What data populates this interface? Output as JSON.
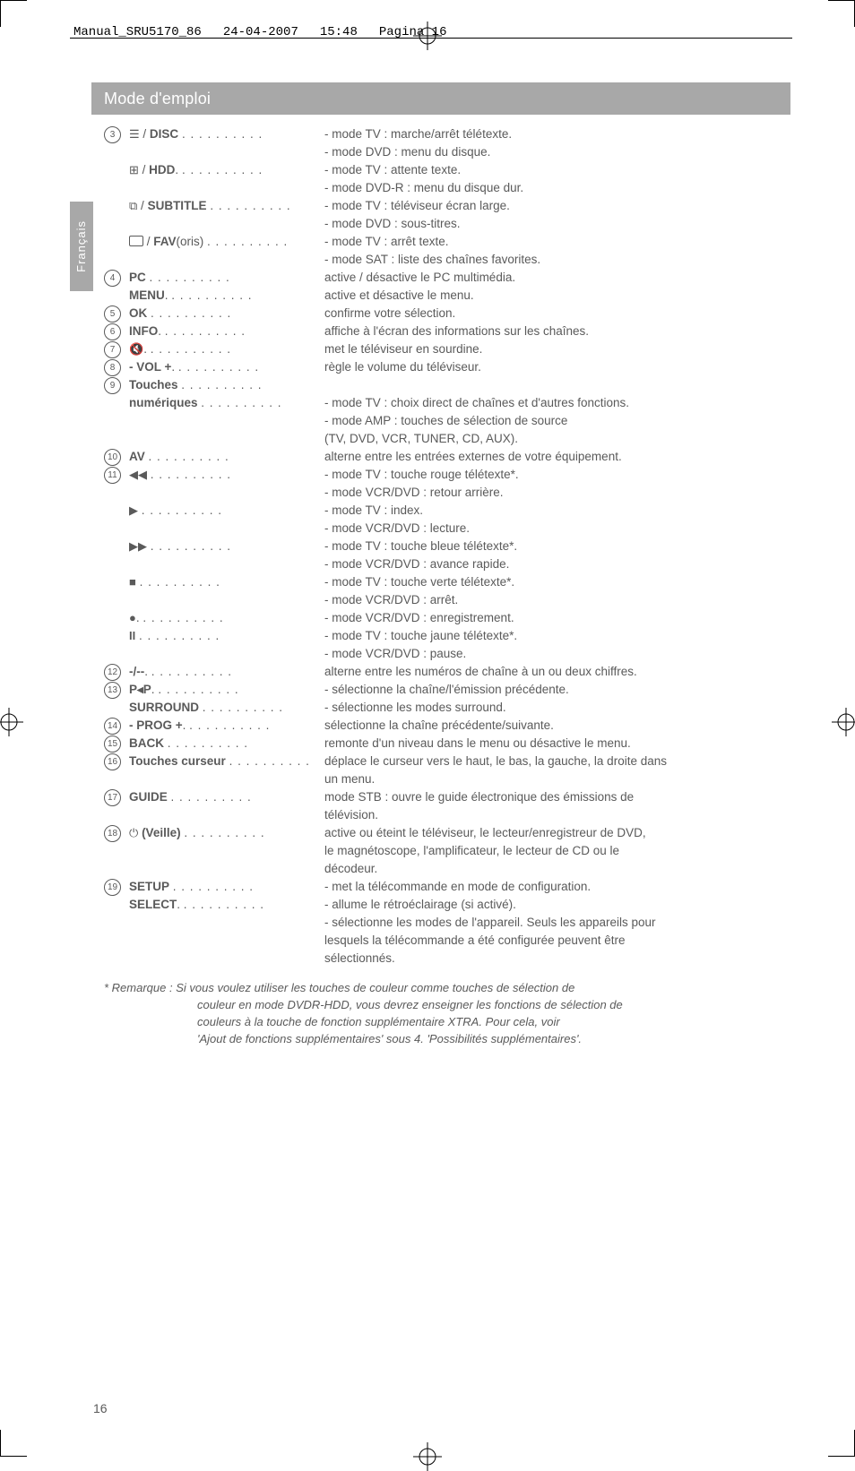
{
  "header": {
    "file": "Manual_SRU5170_86",
    "date": "24-04-2007",
    "time": "15:48",
    "pageinfo": "Pagina 16"
  },
  "section_title": "Mode d'emploi",
  "lang_tab": "Français",
  "dots12": ". . . . . . . . . . .",
  "dots11": ". . . . . . . . . .",
  "dots10": ". . . . . . . . .",
  "dots9": ". . . . . . . .",
  "dots8": ". . . . . . .",
  "dots7": ". . . . . .",
  "dots6": ". . . . .",
  "dots5": ". . . .",
  "dots_long": ". . . . . . . . . . . . . . . . .",
  "dots_longer": ". . . . . . . . . . . . . . . . . . .",
  "items": [
    {
      "n": "3",
      "label_html": "<span class='icon'>☰</span> / <b>DISC</b>",
      "desc": "- mode TV : marche/arrêt télétexte."
    },
    {
      "desc": "- mode DVD : menu du disque."
    },
    {
      "label_html": "<span class='icon'>⊞</span> / <b>HDD</b>.",
      "desc": "- mode TV : attente texte."
    },
    {
      "desc": "- mode DVD-R : menu du disque dur."
    },
    {
      "label_html": "<span class='icon'>⧉</span> / <b>SUBTITLE</b>",
      "desc": "- mode TV : téléviseur écran large."
    },
    {
      "desc": "- mode DVD : sous-titres."
    },
    {
      "label_html": "<span class='icon-box'></span> / <b>FAV</b>(oris)",
      "desc": "- mode TV : arrêt texte."
    },
    {
      "desc": "- mode SAT : liste des chaînes favorites."
    },
    {
      "n": "4",
      "label_html": "<b>PC</b>",
      "desc": "active / désactive le PC multimédia."
    },
    {
      "label_html": "<b>MENU</b>.",
      "desc": "active et désactive le menu."
    },
    {
      "n": "5",
      "label_html": "<b>OK</b>",
      "desc": "confirme votre sélection."
    },
    {
      "n": "6",
      "label_html": "<b>INFO</b>.",
      "desc": "affiche à l'écran des informations sur les chaînes."
    },
    {
      "n": "7",
      "label_html": "<span class='icon'>🔇</span>.",
      "desc": "met le téléviseur en sourdine."
    },
    {
      "n": "8",
      "label_html": "<b>- VOL +</b>.",
      "desc": "règle le volume du téléviseur."
    },
    {
      "n": "9",
      "label_html": "<b>Touches</b>",
      "desc": ""
    },
    {
      "label_html": "<b>numériques</b>",
      "desc": "- mode TV : choix direct de chaînes et d'autres fonctions."
    },
    {
      "desc": "- mode AMP : touches de sélection de source"
    },
    {
      "desc": "  (TV, DVD, VCR, TUNER, CD, AUX)."
    },
    {
      "n": "10",
      "label_html": "<b>AV</b>",
      "desc": "alterne entre les entrées externes de votre équipement."
    },
    {
      "n": "11",
      "label_html": "<span class='icon'>◀◀</span>",
      "desc": "- mode TV : touche rouge télétexte*."
    },
    {
      "desc": "- mode VCR/DVD : retour arrière."
    },
    {
      "label_html": "<span class='icon'>▶</span>",
      "desc": "- mode TV : index."
    },
    {
      "desc": "- mode VCR/DVD : lecture."
    },
    {
      "label_html": "<span class='icon'>▶▶</span>",
      "desc": "- mode TV : touche bleue télétexte*."
    },
    {
      "desc": "- mode VCR/DVD : avance rapide."
    },
    {
      "label_html": "<span class='icon'>■</span>",
      "desc": "- mode TV : touche verte télétexte*."
    },
    {
      "desc": "- mode VCR/DVD : arrêt."
    },
    {
      "label_html": "<span class='icon'>●</span>.",
      "desc": "- mode VCR/DVD : enregistrement."
    },
    {
      "label_html": "<span class='icon'><b>II</b></span>",
      "desc": "- mode TV : touche jaune télétexte*."
    },
    {
      "desc": "- mode VCR/DVD : pause."
    },
    {
      "n": "12",
      "label_html": "<b>-/--</b>.",
      "desc": "alterne entre les numéros de chaîne à un ou deux chiffres."
    },
    {
      "n": "13",
      "label_html": "<b>P◂P</b>.",
      "desc": "- sélectionne la chaîne/l'émission précédente."
    },
    {
      "label_html": "<b>SURROUND</b>",
      "desc": "- sélectionne les modes surround."
    },
    {
      "n": "14",
      "label_html": "<b>- PROG +</b>.",
      "desc": "sélectionne la chaîne précédente/suivante."
    },
    {
      "n": "15",
      "label_html": "<b>BACK</b>",
      "desc": "remonte d'un niveau dans le menu ou désactive le menu."
    },
    {
      "n": "16",
      "label_html": "<b>Touches curseur</b>",
      "desc": "déplace le curseur vers le haut, le bas, la gauche, la droite dans"
    },
    {
      "desc": "un menu."
    },
    {
      "n": "17",
      "label_html": "<b>GUIDE</b>",
      "desc": "mode STB : ouvre le guide électronique des émissions de"
    },
    {
      "desc": "télévision."
    },
    {
      "n": "18",
      "label_html": "<span class='icon'>⏻</span> <b>(Veille)</b>",
      "desc": "active ou éteint le téléviseur, le lecteur/enregistreur de DVD,"
    },
    {
      "desc": "le magnétoscope, l'amplificateur, le lecteur de CD ou le"
    },
    {
      "desc": "décodeur."
    },
    {
      "n": "19",
      "label_html": "<b>SETUP</b>",
      "desc": "- met la télécommande en mode de configuration."
    },
    {
      "label_html": "<b>SELECT</b>.",
      "desc": "- allume le rétroéclairage (si activé)."
    },
    {
      "desc": "- sélectionne les modes de l'appareil. Seuls les appareils pour"
    },
    {
      "desc": "  lesquels la télécommande a été configurée peuvent être"
    },
    {
      "desc": "  sélectionnés."
    }
  ],
  "remark_lines": [
    "* Remarque : Si vous voulez utiliser les touches de couleur comme touches de sélection de",
    "couleur en mode DVDR-HDD, vous devrez enseigner les fonctions de sélection de",
    "couleurs à la touche de fonction supplémentaire XTRA. Pour cela, voir",
    "'Ajout de fonctions supplémentaires' sous 4. 'Possibilités supplémentaires'."
  ],
  "page_number": "16"
}
